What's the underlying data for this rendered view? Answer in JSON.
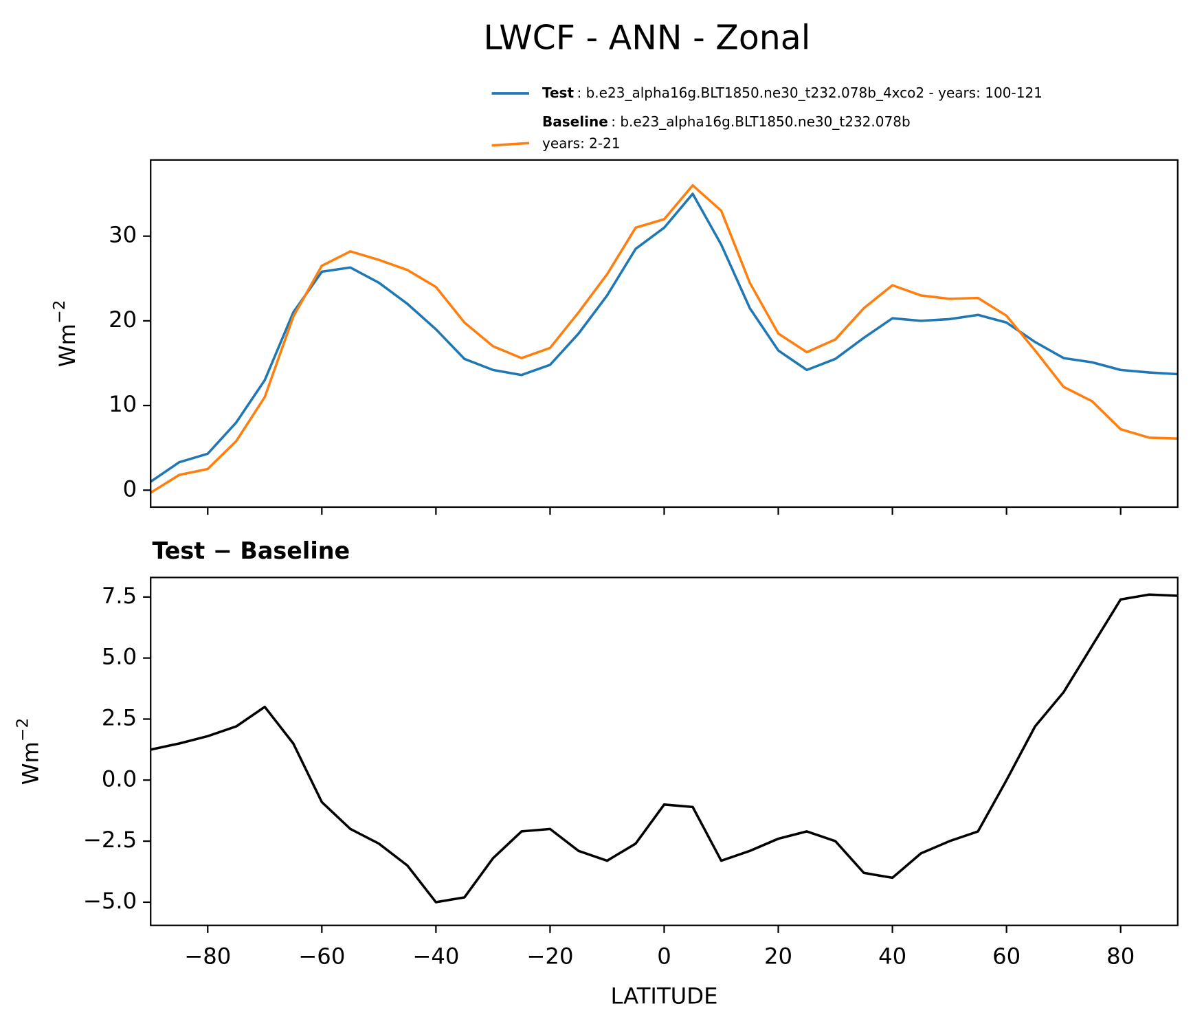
{
  "chart_data": [
    {
      "type": "line",
      "title": "LWCF - ANN - Zonal",
      "ylabel": {
        "base": "Wm",
        "sup": "−2"
      },
      "x": [
        -90,
        -85,
        -80,
        -75,
        -70,
        -65,
        -60,
        -55,
        -50,
        -45,
        -40,
        -35,
        -30,
        -25,
        -20,
        -15,
        -10,
        -5,
        0,
        5,
        10,
        15,
        20,
        25,
        30,
        35,
        40,
        45,
        50,
        55,
        60,
        65,
        70,
        75,
        80,
        85,
        90
      ],
      "series": [
        {
          "name": "Test",
          "description": [
            ": b.e23_alpha16g.BLT1850.ne30_t232.078b_4xco2 - years: 100-121"
          ],
          "color": "#1f77b4",
          "values": [
            1.0,
            3.3,
            4.3,
            8.0,
            13.0,
            21.0,
            25.8,
            26.3,
            24.5,
            22.0,
            19.0,
            15.5,
            14.2,
            13.6,
            14.8,
            18.5,
            23.0,
            28.5,
            31.0,
            35.0,
            29.0,
            21.5,
            16.5,
            14.2,
            15.5,
            18.0,
            20.3,
            20.0,
            20.2,
            20.7,
            19.8,
            17.5,
            15.6,
            15.1,
            14.2,
            13.9,
            13.7
          ]
        },
        {
          "name": "Baseline",
          "description": [
            ": b.e23_alpha16g.BLT1850.ne30_t232.078b",
            "years: 2-21"
          ],
          "color": "#ff7f0e",
          "values": [
            -0.3,
            1.8,
            2.5,
            5.8,
            11.0,
            20.5,
            26.5,
            28.2,
            27.2,
            26.0,
            24.0,
            19.8,
            17.0,
            15.6,
            16.8,
            21.0,
            25.5,
            31.0,
            32.0,
            36.0,
            33.0,
            24.5,
            18.5,
            16.3,
            17.8,
            21.5,
            24.2,
            23.0,
            22.6,
            22.7,
            20.6,
            16.5,
            12.2,
            10.5,
            7.2,
            6.2,
            6.1
          ]
        }
      ],
      "xlim": [
        -90,
        90
      ],
      "ylim": [
        -2,
        39
      ],
      "xticks": [
        -80,
        -60,
        -40,
        -20,
        0,
        20,
        40,
        60,
        80
      ],
      "xtick_labels": false,
      "yticks": [
        0,
        10,
        20,
        30
      ],
      "legend": "upper right"
    },
    {
      "type": "line",
      "title": "Test − Baseline",
      "xlabel": "LATITUDE",
      "ylabel": {
        "base": "Wm",
        "sup": "−2"
      },
      "x": [
        -90,
        -85,
        -80,
        -75,
        -70,
        -65,
        -60,
        -55,
        -50,
        -45,
        -40,
        -35,
        -30,
        -25,
        -20,
        -15,
        -10,
        -5,
        0,
        5,
        10,
        15,
        20,
        25,
        30,
        35,
        40,
        45,
        50,
        55,
        60,
        65,
        70,
        75,
        80,
        85,
        90
      ],
      "series": [
        {
          "color": "#000000",
          "values": [
            1.25,
            1.5,
            1.8,
            2.2,
            3.0,
            1.5,
            -0.9,
            -2.0,
            -2.6,
            -3.5,
            -5.0,
            -4.8,
            -3.2,
            -2.1,
            -2.0,
            -2.9,
            -3.3,
            -2.6,
            -1.0,
            -1.1,
            -3.3,
            -2.9,
            -2.4,
            -2.1,
            -2.5,
            -3.8,
            -4.0,
            -3.0,
            -2.5,
            -2.1,
            0.0,
            2.2,
            3.6,
            5.5,
            7.4,
            7.6,
            7.55
          ]
        }
      ],
      "xlim": [
        -90,
        90
      ],
      "ylim": [
        -5.95,
        8.3
      ],
      "xticks": [
        {
          "value": -80,
          "label": "−80"
        },
        {
          "value": -60,
          "label": "−60"
        },
        {
          "value": -40,
          "label": "−40"
        },
        {
          "value": -20,
          "label": "−20"
        },
        0,
        20,
        40,
        60,
        80
      ],
      "xtick_labels": true,
      "yticks": [
        {
          "value": -5,
          "label": "−5.0"
        },
        {
          "value": -2.5,
          "label": "−2.5"
        },
        {
          "value": 0,
          "label": "0.0"
        },
        {
          "value": 2.5,
          "label": "2.5"
        },
        {
          "value": 5,
          "label": "5.0"
        },
        {
          "value": 7.5,
          "label": "7.5"
        }
      ]
    }
  ]
}
